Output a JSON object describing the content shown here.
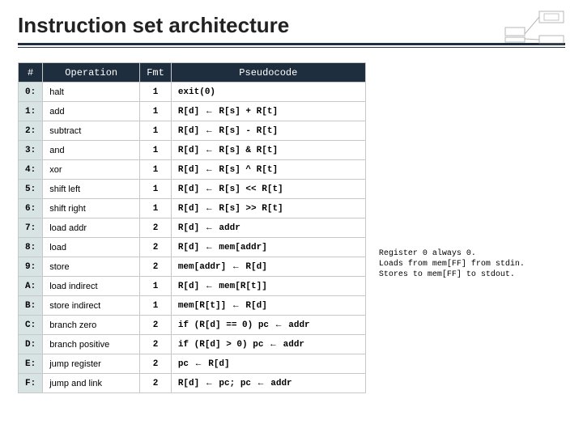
{
  "title": "Instruction set architecture",
  "columns": [
    "#",
    "Operation",
    "Fmt",
    "Pseudocode"
  ],
  "rows": [
    {
      "code": "0:",
      "op": "halt",
      "fmt": "1",
      "pseudo": "exit(0)"
    },
    {
      "code": "1:",
      "op": "add",
      "fmt": "1",
      "pseudo": "R[d] ← R[s]  +  R[t]"
    },
    {
      "code": "2:",
      "op": "subtract",
      "fmt": "1",
      "pseudo": "R[d] ← R[s]  -  R[t]"
    },
    {
      "code": "3:",
      "op": "and",
      "fmt": "1",
      "pseudo": "R[d] ← R[s]  &  R[t]"
    },
    {
      "code": "4:",
      "op": "xor",
      "fmt": "1",
      "pseudo": "R[d] ← R[s]  ^  R[t]"
    },
    {
      "code": "5:",
      "op": "shift left",
      "fmt": "1",
      "pseudo": "R[d] ← R[s] << R[t]"
    },
    {
      "code": "6:",
      "op": "shift right",
      "fmt": "1",
      "pseudo": "R[d] ← R[s] >> R[t]"
    },
    {
      "code": "7:",
      "op": "load addr",
      "fmt": "2",
      "pseudo": "R[d] ← addr"
    },
    {
      "code": "8:",
      "op": "load",
      "fmt": "2",
      "pseudo": "R[d] ← mem[addr]"
    },
    {
      "code": "9:",
      "op": "store",
      "fmt": "2",
      "pseudo": "mem[addr] ← R[d]"
    },
    {
      "code": "A:",
      "op": "load indirect",
      "fmt": "1",
      "pseudo": "R[d] ← mem[R[t]]"
    },
    {
      "code": "B:",
      "op": "store indirect",
      "fmt": "1",
      "pseudo": "mem[R[t]] ← R[d]"
    },
    {
      "code": "C:",
      "op": "branch zero",
      "fmt": "2",
      "pseudo": "if (R[d] == 0) pc ← addr"
    },
    {
      "code": "D:",
      "op": "branch positive",
      "fmt": "2",
      "pseudo": "if (R[d] > 0)  pc ← addr"
    },
    {
      "code": "E:",
      "op": "jump register",
      "fmt": "2",
      "pseudo": "pc ← R[d]"
    },
    {
      "code": "F:",
      "op": "jump and link",
      "fmt": "2",
      "pseudo": "R[d] ← pc; pc ← addr"
    }
  ],
  "notes": [
    "Register 0 always 0.",
    "Loads from mem[FF] from stdin.",
    "Stores to mem[FF] to stdout."
  ],
  "colors": {
    "header_bg": "#1f2e3f",
    "numcol_bg": "#d8e4e4",
    "border": "#c8c8c8"
  }
}
